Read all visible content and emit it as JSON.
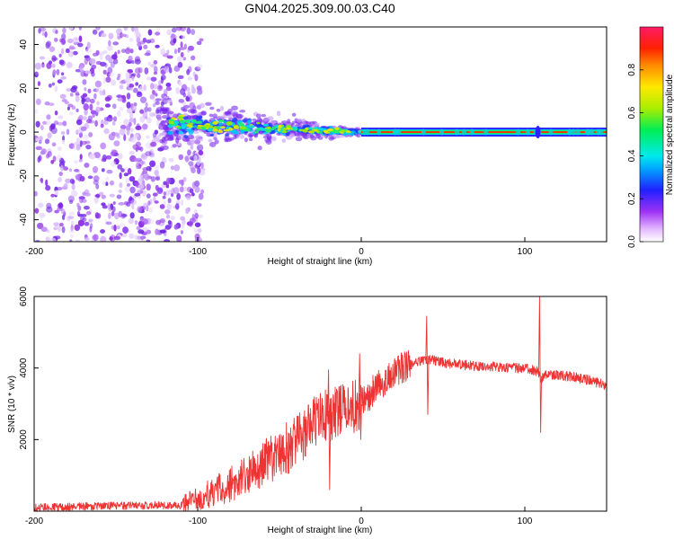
{
  "chart_data": [
    {
      "type": "heatmap",
      "title": "GN04.2025.309.00.03.C40",
      "xlabel": "Height of straight line (km)",
      "ylabel": "Frequency (Hz)",
      "xlim": [
        -200,
        150
      ],
      "ylim": [
        -50,
        48
      ],
      "xticks": [
        "-200",
        "-100",
        "0",
        "100"
      ],
      "yticks": [
        "-40",
        "-20",
        "0",
        "20",
        "40"
      ],
      "colorbar": {
        "label": "Normalized spectral amplitude",
        "range": [
          0,
          1
        ],
        "ticks": [
          "0.0",
          "0.2",
          "0.4",
          "0.6",
          "0.8"
        ]
      },
      "features": [
        {
          "name": "broadband noise",
          "x_range": [
            -200,
            -103
          ],
          "freq_range": [
            -50,
            48
          ]
        },
        {
          "name": "converging signal",
          "x_range": [
            -125,
            0
          ],
          "freq_start": 4,
          "freq_end": 0
        },
        {
          "name": "carrier line",
          "x_range": [
            0,
            150
          ],
          "freq": 0
        }
      ]
    },
    {
      "type": "line",
      "xlabel": "Height of straight line (km)",
      "ylabel": "SNR (10 * v/v)",
      "xlim": [
        -200,
        150
      ],
      "ylim": [
        0,
        6000
      ],
      "xticks": [
        "-200",
        "-100",
        "0",
        "100"
      ],
      "yticks": [
        "2000",
        "4000",
        "6000"
      ],
      "series": [
        {
          "name": "SNR",
          "color": "#ee3333",
          "x": [
            -200,
            -150,
            -110,
            -100,
            -90,
            -80,
            -70,
            -60,
            -50,
            -40,
            -30,
            -25,
            -20,
            -10,
            0,
            10,
            20,
            30,
            40,
            50,
            60,
            70,
            80,
            90,
            100,
            108,
            110,
            112,
            120,
            130,
            140,
            150
          ],
          "values": [
            100,
            150,
            170,
            350,
            550,
            750,
            950,
            1350,
            1600,
            1950,
            2400,
            2650,
            2650,
            2850,
            3000,
            3500,
            3900,
            4100,
            4250,
            4150,
            4100,
            4050,
            4050,
            4000,
            4000,
            3900,
            3650,
            3850,
            3800,
            3750,
            3650,
            3500
          ]
        }
      ],
      "spikes": [
        {
          "x": 40,
          "max": 5450,
          "min": 2700
        },
        {
          "x": 109,
          "max": 6000,
          "min": 2200
        },
        {
          "x": -1,
          "max": 4400,
          "min": 2000
        },
        {
          "x": -20,
          "max": 3950,
          "min": 600
        }
      ]
    }
  ]
}
